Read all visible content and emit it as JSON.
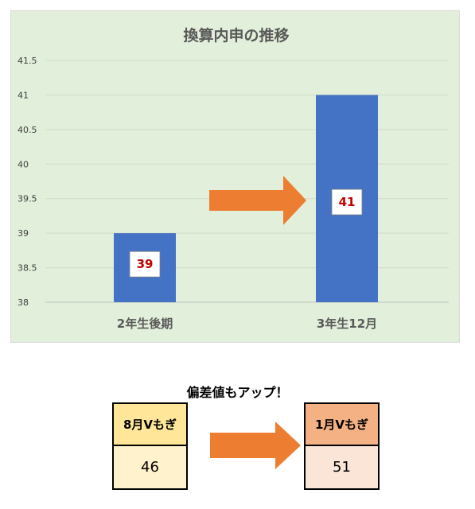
{
  "chart_data": {
    "type": "bar",
    "title": "換算内申の推移",
    "categories": [
      "2年生後期",
      "3年生12月"
    ],
    "values": [
      39,
      41
    ],
    "data_labels": [
      "39",
      "41"
    ],
    "ylim": [
      38,
      41.5
    ],
    "yticks": [
      "38",
      "38.5",
      "39",
      "39.5",
      "40",
      "40.5",
      "41",
      "41.5"
    ],
    "grid": true,
    "colors": {
      "bar": "#4472c4",
      "background": "#e2efda",
      "label_text": "#c00000",
      "arrow": "#ed7d31"
    }
  },
  "comparison": {
    "title": "偏差値もアップ！",
    "before": {
      "label": "8月Vもぎ",
      "value": "46",
      "head_color": "#ffe699",
      "body_color": "#fff2cc"
    },
    "after": {
      "label": "1月Vもぎ",
      "value": "51",
      "head_color": "#f4b183",
      "body_color": "#fbe5d6"
    },
    "arrow_color": "#ed7d31"
  }
}
